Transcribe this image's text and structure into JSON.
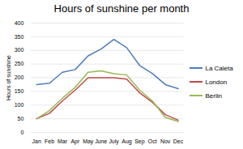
{
  "chart_data": {
    "type": "line",
    "title": "Hours of sunshine per month",
    "y_label": "Hours of sunshine",
    "categories": [
      "Jan",
      "Feb",
      "Mar",
      "Apr",
      "May",
      "June",
      "July",
      "Aug",
      "Sep",
      "Oct",
      "Nov",
      "Dec"
    ],
    "series": [
      {
        "name": "La Caleta",
        "color": "#4a7ebb",
        "values": [
          175,
          180,
          220,
          230,
          280,
          305,
          340,
          310,
          245,
          215,
          175,
          160
        ]
      },
      {
        "name": "London",
        "color": "#be4b48",
        "values": [
          50,
          70,
          115,
          155,
          200,
          200,
          200,
          195,
          145,
          110,
          65,
          45
        ]
      },
      {
        "name": "Berlin",
        "color": "#98b954",
        "values": [
          50,
          80,
          125,
          165,
          220,
          225,
          215,
          210,
          155,
          115,
          55,
          40
        ]
      }
    ],
    "ylim": [
      0,
      400
    ],
    "yticks": [
      0,
      50,
      100,
      150,
      200,
      250,
      300,
      350,
      400
    ],
    "grid": true,
    "legend": "right"
  }
}
